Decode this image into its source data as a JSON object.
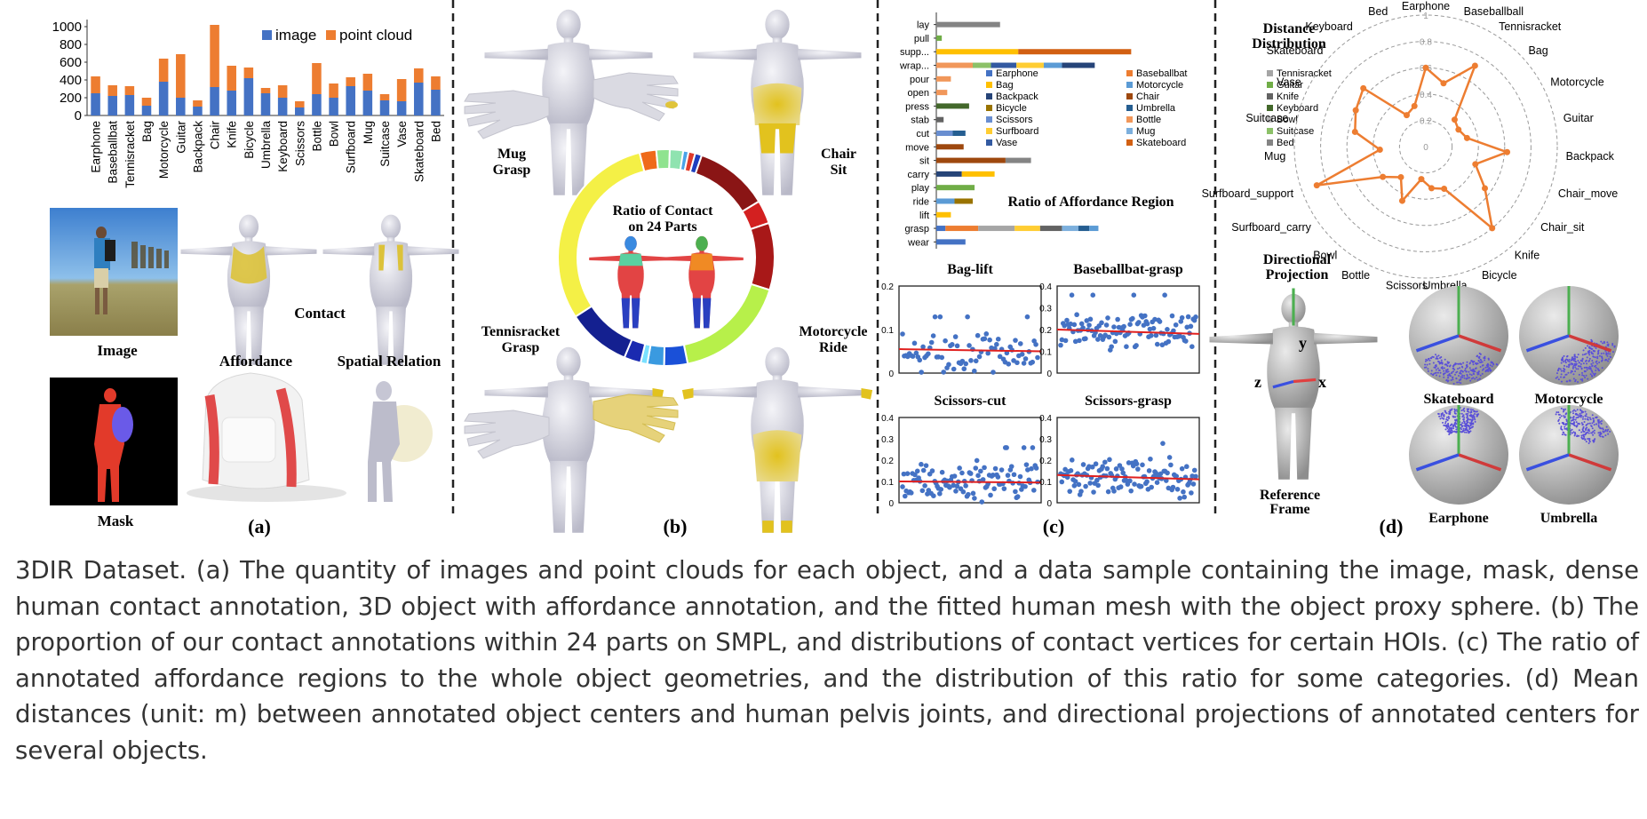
{
  "figure": {
    "panel_labels": [
      "(a)",
      "(b)",
      "(c)",
      "(d)"
    ],
    "panel_a": {
      "labels": {
        "image": "Image",
        "mask": "Mask",
        "contact": "Contact",
        "affordance": "Affordance",
        "spatial_relation": "Spatial Relation"
      }
    },
    "panel_b": {
      "donut_title_1": "Ratio of Contact",
      "donut_title_2": "on 24 Parts",
      "hoi_labels": [
        {
          "obj": "Mug",
          "act": "Grasp"
        },
        {
          "obj": "Chair",
          "act": "Sit"
        },
        {
          "obj": "Tennisracket",
          "act": "Grasp"
        },
        {
          "obj": "Motorcycle",
          "act": "Ride"
        }
      ],
      "colors": {
        "donut": [
          "#ef6a1a",
          "#8fe38f",
          "#8fe3b0",
          "#4aa3e8",
          "#e03a2a",
          "#1f3fbf",
          "#8a1515",
          "#d32020",
          "#a81818",
          "#b7f04a",
          "#1a50d8",
          "#3a9ae0",
          "#7ae0ff",
          "#1a2ab0",
          "#142090",
          "#f4f046"
        ]
      }
    },
    "panel_c": {
      "bar_title": "Ratio of Affordance Region",
      "color_hex": {
        "Earphone": "#4472c4",
        "Baseballbat": "#ed7d31",
        "Tennisracket": "#a5a5a5",
        "Bag": "#ffc000",
        "Motorcycle": "#5b9bd5",
        "Guitar": "#70ad47",
        "Backpack": "#264478",
        "Chair": "#9e480e",
        "Knife": "#636363",
        "Bicycle": "#997300",
        "Umbrella": "#255e91",
        "Keyboard": "#43682b",
        "Scissors": "#698ed0",
        "Bottle": "#f1975a",
        "Bowl": "#b7b7b7",
        "Surfboard": "#ffcd33",
        "Mug": "#7cafdd",
        "Suitcase": "#8cc168",
        "Vase": "#335aa1",
        "Skateboard": "#d26012",
        "Bed": "#848484"
      },
      "scatter_panels": [
        {
          "title": "Bag-lift",
          "ylim": [
            0,
            0.2
          ],
          "yticks": [
            "0",
            "0.1",
            "0.2"
          ],
          "trend": [
            0.055,
            0.05
          ]
        },
        {
          "title": "Baseballbat-grasp",
          "ylim": [
            0,
            0.4
          ],
          "yticks": [
            "0",
            "0.1",
            "0.2",
            "0.3",
            "0.4"
          ],
          "trend": [
            0.2,
            0.18
          ]
        },
        {
          "title": "Scissors-cut",
          "ylim": [
            0,
            0.4
          ],
          "yticks": [
            "0",
            "0.1",
            "0.2",
            "0.3",
            "0.4"
          ],
          "trend": [
            0.1,
            0.095
          ]
        },
        {
          "title": "Scissors-grasp",
          "ylim": [
            0,
            0.4
          ],
          "yticks": [
            "0",
            "0.1",
            "0.2",
            "0.3",
            "0.4"
          ],
          "trend": [
            0.13,
            0.11
          ]
        }
      ]
    },
    "panel_d": {
      "radar_title_1": "Distance",
      "radar_title_2": "Distribution",
      "ring_labels": [
        "0",
        "0.2",
        "0.4",
        "0.6",
        "0.8",
        "1"
      ],
      "proj_title_1": "Directional",
      "proj_title_2": "Projection",
      "ref_title_1": "Reference",
      "ref_title_2": "Frame",
      "axes": {
        "x": "x",
        "y": "y",
        "z": "z"
      },
      "spheres": [
        "Skateboard",
        "Motorcycle",
        "Earphone",
        "Umbrella"
      ]
    }
  },
  "chart_data": [
    {
      "type": "bar",
      "stacked": true,
      "categories": [
        "Earphone",
        "Baseballbat",
        "Tennisracket",
        "Bag",
        "Motorcycle",
        "Guitar",
        "Backpack",
        "Chair",
        "Knife",
        "Bicycle",
        "Umbrella",
        "Keyboard",
        "Scissors",
        "Bottle",
        "Bowl",
        "Surfboard",
        "Mug",
        "Suitcase",
        "Vase",
        "Skateboard",
        "Bed"
      ],
      "series": [
        {
          "name": "image",
          "color": "#4472c4",
          "values": [
            250,
            220,
            230,
            110,
            380,
            200,
            100,
            320,
            280,
            420,
            250,
            200,
            90,
            240,
            200,
            330,
            280,
            170,
            160,
            370,
            290
          ]
        },
        {
          "name": "point cloud",
          "color": "#ed7d31",
          "values": [
            190,
            120,
            100,
            90,
            260,
            490,
            70,
            700,
            280,
            120,
            60,
            140,
            70,
            350,
            160,
            100,
            190,
            70,
            250,
            160,
            150
          ]
        }
      ],
      "ylim": [
        0,
        1000
      ],
      "yticks": [
        0,
        200,
        400,
        600,
        800,
        1000
      ],
      "legend": "top-right"
    },
    {
      "type": "bar",
      "stacked": true,
      "orientation": "horizontal",
      "title": "Ratio of Affordance Region",
      "categories": [
        "lay",
        "pull",
        "support",
        "wrap",
        "pour",
        "open",
        "press",
        "stab",
        "cut",
        "move",
        "sit",
        "carry",
        "play",
        "ride",
        "lift",
        "grasp",
        "wear"
      ],
      "tick_labels": [
        "lay",
        "pull",
        "supp...",
        "wrap...",
        "pour",
        "open",
        "press",
        "stab",
        "cut",
        "move",
        "sit",
        "carry",
        "play",
        "ride",
        "lift",
        "grasp",
        "wear"
      ],
      "legend": [
        "Earphone",
        "Baseballbat",
        "Tennisracket",
        "Bag",
        "Motorcycle",
        "Guitar",
        "Backpack",
        "Chair",
        "Knife",
        "Bicycle",
        "Umbrella",
        "Keyboard",
        "Scissors",
        "Bottle",
        "Bowl",
        "Surfboard",
        "Mug",
        "Suitcase",
        "Vase",
        "Skateboard",
        "Bed"
      ],
      "segments": [
        [
          [
            "Bed",
            0.35
          ]
        ],
        [
          [
            "Guitar",
            0.03
          ]
        ],
        [
          [
            "Bag",
            0.45
          ],
          [
            "Skateboard",
            0.62
          ]
        ],
        [
          [
            "Bottle",
            0.2
          ],
          [
            "Suitcase",
            0.1
          ],
          [
            "Vase",
            0.14
          ],
          [
            "Surfboard",
            0.15
          ],
          [
            "Motorcycle",
            0.1
          ],
          [
            "Backpack",
            0.18
          ]
        ],
        [
          [
            "Bottle",
            0.08
          ]
        ],
        [
          [
            "Bottle",
            0.06
          ]
        ],
        [
          [
            "Keyboard",
            0.18
          ]
        ],
        [
          [
            "Knife",
            0.04
          ]
        ],
        [
          [
            "Scissors",
            0.09
          ],
          [
            "Umbrella",
            0.07
          ]
        ],
        [
          [
            "Chair",
            0.15
          ]
        ],
        [
          [
            "Chair",
            0.38
          ],
          [
            "Bed",
            0.14
          ]
        ],
        [
          [
            "Backpack",
            0.14
          ],
          [
            "Bag",
            0.18
          ]
        ],
        [
          [
            "Guitar",
            0.21
          ]
        ],
        [
          [
            "Motorcycle",
            0.1
          ],
          [
            "Bicycle",
            0.1
          ]
        ],
        [
          [
            "Bag",
            0.08
          ]
        ],
        [
          [
            "Earphone",
            0.05
          ],
          [
            "Baseballbat",
            0.18
          ],
          [
            "Tennisracket",
            0.2
          ],
          [
            "Surfboard",
            0.14
          ],
          [
            "Knife",
            0.12
          ],
          [
            "Mug",
            0.09
          ],
          [
            "Umbrella",
            0.06
          ],
          [
            "Motorcycle",
            0.05
          ]
        ],
        [
          [
            "Earphone",
            0.16
          ]
        ]
      ],
      "xlim": [
        0,
        1.2
      ]
    },
    {
      "type": "scatter",
      "title": "Bag-lift",
      "ylim": [
        0,
        0.2
      ],
      "points": 80,
      "y_mean": 0.05,
      "trendline": [
        0.055,
        0.05
      ]
    },
    {
      "type": "scatter",
      "title": "Baseballbat-grasp",
      "ylim": [
        0,
        0.4
      ],
      "points": 110,
      "y_mean": 0.2,
      "trendline": [
        0.2,
        0.18
      ]
    },
    {
      "type": "scatter",
      "title": "Scissors-cut",
      "ylim": [
        0,
        0.4
      ],
      "points": 110,
      "y_mean": 0.1,
      "trendline": [
        0.1,
        0.095
      ]
    },
    {
      "type": "scatter",
      "title": "Scissors-grasp",
      "ylim": [
        0,
        0.4
      ],
      "points": 120,
      "y_mean": 0.12,
      "trendline": [
        0.13,
        0.11
      ]
    },
    {
      "type": "radar",
      "title": "Distance Distribution",
      "categories": [
        "Earphone",
        "Baseballball",
        "Tennisracket",
        "Bag",
        "Motorcycle",
        "Guitar",
        "Backpack",
        "Chair_move",
        "Chair_sit",
        "Knife",
        "Bicycle",
        "Umbrella",
        "Scissors",
        "Bottle",
        "Bowl",
        "Surfboard_carry",
        "Surfboard_support",
        "Mug",
        "Suitcase",
        "Vase",
        "Skateboard",
        "Keyboard",
        "Bed"
      ],
      "values": [
        0.6,
        0.5,
        0.72,
        0.3,
        0.28,
        0.32,
        0.62,
        0.4,
        0.55,
        0.8,
        0.35,
        0.32,
        0.25,
        0.45,
        0.3,
        0.4,
        0.88,
        0.35,
        0.55,
        0.6,
        0.65,
        0.28,
        0.32
      ],
      "rlim": [
        0,
        1
      ],
      "rings": [
        0,
        0.2,
        0.4,
        0.6,
        0.8,
        1
      ]
    }
  ],
  "caption": "3DIR Dataset. (a) The quantity of images and point clouds for each object, and a data sample containing the image, mask, dense human contact annotation, 3D object with affordance annotation, and the fitted human mesh with the object proxy sphere. (b) The proportion of our contact annotations within 24 parts on SMPL, and distributions of contact vertices for certain HOIs. (c) The ratio of annotated affordance regions to the whole object geometries, and the distribution of this ratio for some categories. (d) Mean distances (unit: m) between annotated object centers and human pelvis joints, and directional projections of annotated centers for several objects."
}
